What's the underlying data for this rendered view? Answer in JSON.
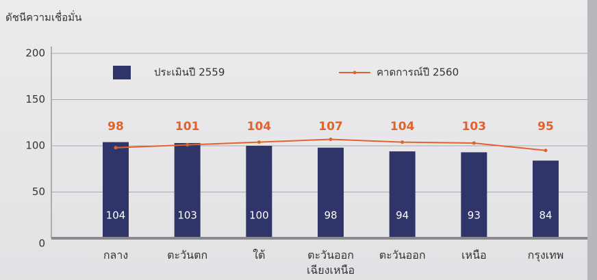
{
  "chart_data": {
    "type": "bar",
    "y_axis_label": "ดัชนีความเชื่อมั่น",
    "categories": [
      "กลาง",
      "ตะวันตก",
      "ใต้",
      "ตะวันออก\nเฉียงเหนือ",
      "ตะวันออก",
      "เหนือ",
      "กรุงเทพ"
    ],
    "series": [
      {
        "name": "ประเมินปี 2559",
        "type": "bar",
        "color": "#2f3569",
        "values": [
          104,
          103,
          100,
          98,
          94,
          93,
          84
        ]
      },
      {
        "name": "คาดการณ์ปี 2560",
        "type": "line",
        "color": "#e0622c",
        "values": [
          98,
          101,
          104,
          107,
          104,
          103,
          95
        ]
      }
    ],
    "ylim": [
      0,
      200
    ],
    "yticks": [
      0,
      50,
      100,
      150,
      200
    ],
    "grid": true,
    "legend": "top"
  }
}
